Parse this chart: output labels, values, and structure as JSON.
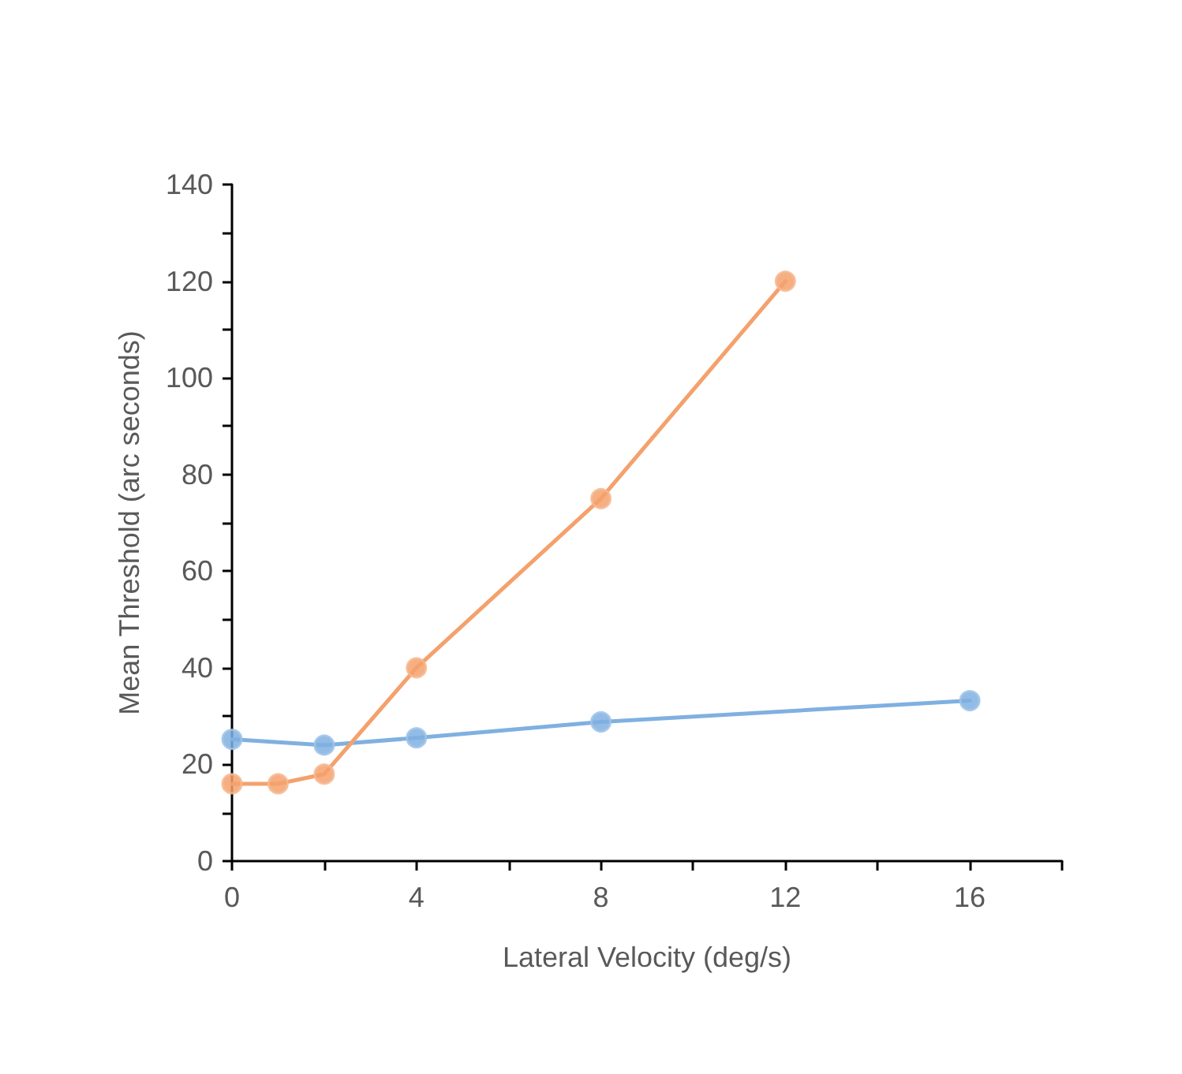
{
  "chart_data": {
    "type": "line",
    "xlabel": "Lateral Velocity (deg/s)",
    "ylabel": "Mean Threshold (arc seconds)",
    "xlim": [
      0,
      18
    ],
    "xticks": [
      0,
      {
        "value": 2,
        "label": null
      },
      4,
      {
        "value": 6,
        "label": null
      },
      8,
      {
        "value": 10,
        "label": null
      },
      12,
      {
        "value": 14,
        "label": null
      },
      16,
      {
        "value": 18,
        "label": null
      }
    ],
    "ylim": [
      0,
      140
    ],
    "yticks": [
      0,
      {
        "value": 10,
        "label": null
      },
      20,
      {
        "value": 30,
        "label": null
      },
      40,
      {
        "value": 50,
        "label": null
      },
      60,
      {
        "value": 70,
        "label": null
      },
      80,
      {
        "value": 90,
        "label": null
      },
      100,
      {
        "value": 110,
        "label": null
      },
      120,
      {
        "value": 130,
        "label": null
      },
      140
    ],
    "grid": false,
    "marker": "circle",
    "line_style": "solid",
    "series": [
      {
        "color": "#7fb0e0",
        "x": [
          0,
          2,
          4,
          8,
          16
        ],
        "values": [
          25.2,
          24,
          25.5,
          28.8,
          33.2
        ]
      },
      {
        "color": "#f4a16c",
        "x": [
          0,
          1,
          2,
          4,
          8,
          12
        ],
        "values": [
          16,
          16,
          18,
          40,
          75,
          120
        ]
      }
    ]
  }
}
